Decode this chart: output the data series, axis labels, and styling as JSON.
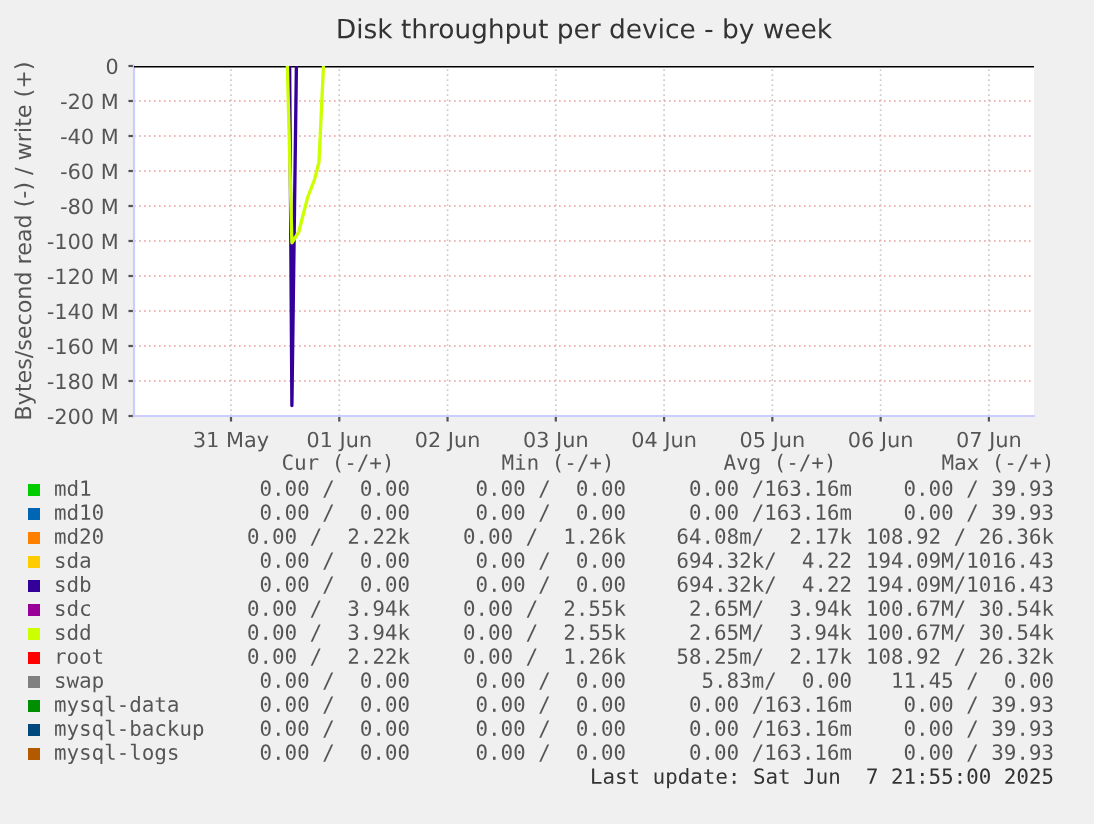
{
  "chart_data": {
    "type": "line",
    "title": "Disk throughput per device - by week",
    "ylabel": "Bytes/second read (-) / write (+)",
    "xlim": [
      "2025-05-30T14:30",
      "2025-06-07T22:00"
    ],
    "xticks": [
      {
        "value": "2025-05-31T12:00",
        "label": "31 May"
      },
      {
        "value": "2025-06-01T12:00",
        "label": "01 Jun"
      },
      {
        "value": "2025-06-02T12:00",
        "label": "02 Jun"
      },
      {
        "value": "2025-06-03T12:00",
        "label": "03 Jun"
      },
      {
        "value": "2025-06-04T12:00",
        "label": "04 Jun"
      },
      {
        "value": "2025-06-05T12:00",
        "label": "05 Jun"
      },
      {
        "value": "2025-06-06T12:00",
        "label": "06 Jun"
      },
      {
        "value": "2025-06-07T12:00",
        "label": "07 Jun"
      }
    ],
    "ylim": [
      -200,
      0
    ],
    "yticks": [
      {
        "value": 0,
        "label": "0"
      },
      {
        "value": -20,
        "label": "-20 M"
      },
      {
        "value": -40,
        "label": "-40 M"
      },
      {
        "value": -60,
        "label": "-60 M"
      },
      {
        "value": -80,
        "label": "-80 M"
      },
      {
        "value": -100,
        "label": "-100 M"
      },
      {
        "value": -120,
        "label": "-120 M"
      },
      {
        "value": -140,
        "label": "-140 M"
      },
      {
        "value": -160,
        "label": "-160 M"
      },
      {
        "value": -180,
        "label": "-180 M"
      },
      {
        "value": -200,
        "label": "-200 M"
      }
    ],
    "grid": true,
    "legend": "bottom",
    "ref_lines": [
      {
        "axis": "y",
        "value": 0,
        "color": "#000000"
      }
    ],
    "series": [
      {
        "name": "md1",
        "color": "#00cc00"
      },
      {
        "name": "md10",
        "color": "#0066b3"
      },
      {
        "name": "md20",
        "color": "#ff8000"
      },
      {
        "name": "sda",
        "color": "#ffcc00"
      },
      {
        "name": "sdb",
        "color": "#330099",
        "x": [
          "2025-06-01T01:00",
          "2025-06-01T01:30",
          "2025-06-01T02:30"
        ],
        "values": [
          0,
          -194,
          0
        ]
      },
      {
        "name": "sdc",
        "color": "#990099"
      },
      {
        "name": "sdd",
        "color": "#ccff00",
        "x": [
          "2025-06-01T00:30",
          "2025-06-01T01:30",
          "2025-06-01T03:00",
          "2025-06-01T04:00",
          "2025-06-01T05:00",
          "2025-06-01T06:30",
          "2025-06-01T07:30",
          "2025-06-01T08:30"
        ],
        "values": [
          0,
          -101,
          -95,
          -85,
          -75,
          -65,
          -55,
          0
        ]
      },
      {
        "name": "root",
        "color": "#ff0000"
      },
      {
        "name": "swap",
        "color": "#808080"
      },
      {
        "name": "mysql-data",
        "color": "#008f00"
      },
      {
        "name": "mysql-backup",
        "color": "#00487d"
      },
      {
        "name": "mysql-logs",
        "color": "#b35a00"
      }
    ],
    "annotations": [
      "Cur (-/+)",
      "Min (-/+)",
      "Avg (-/+)",
      "Max (-/+)",
      "0.00 /  0.00",
      "0.00 /  0.00",
      "0.00 /163.16m",
      "0.00 / 39.93",
      "0.00 /  0.00",
      "0.00 /  0.00",
      "0.00 /163.16m",
      "0.00 / 39.93",
      "0.00 /  2.22k",
      "0.00 /  1.26k",
      "64.08m/  2.17k",
      "108.92 / 26.36k",
      "0.00 /  0.00",
      "0.00 /  0.00",
      "694.32k/  4.22",
      "194.09M/1016.43",
      "0.00 /  0.00",
      "0.00 /  0.00",
      "694.32k/  4.22",
      "194.09M/1016.43",
      "0.00 /  3.94k",
      "0.00 /  2.55k",
      "2.65M/  3.94k",
      "100.67M/ 30.54k",
      "0.00 /  3.94k",
      "0.00 /  2.55k",
      "2.65M/  3.94k",
      "100.67M/ 30.54k",
      "0.00 /  2.22k",
      "0.00 /  1.26k",
      "58.25m/  2.17k",
      "108.92 / 26.32k",
      "0.00 /  0.00",
      "0.00 /  0.00",
      "5.83m/  0.00",
      "11.45 /  0.00",
      "0.00 /  0.00",
      "0.00 /  0.00",
      "0.00 /163.16m",
      "0.00 / 39.93",
      "0.00 /  0.00",
      "0.00 /  0.00",
      "0.00 /163.16m",
      "0.00 / 39.93",
      "0.00 /  0.00",
      "0.00 /  0.00",
      "0.00 /163.16m",
      "0.00 / 39.93",
      "Last update: Sat Jun  7 21:55:00 2025"
    ]
  }
}
